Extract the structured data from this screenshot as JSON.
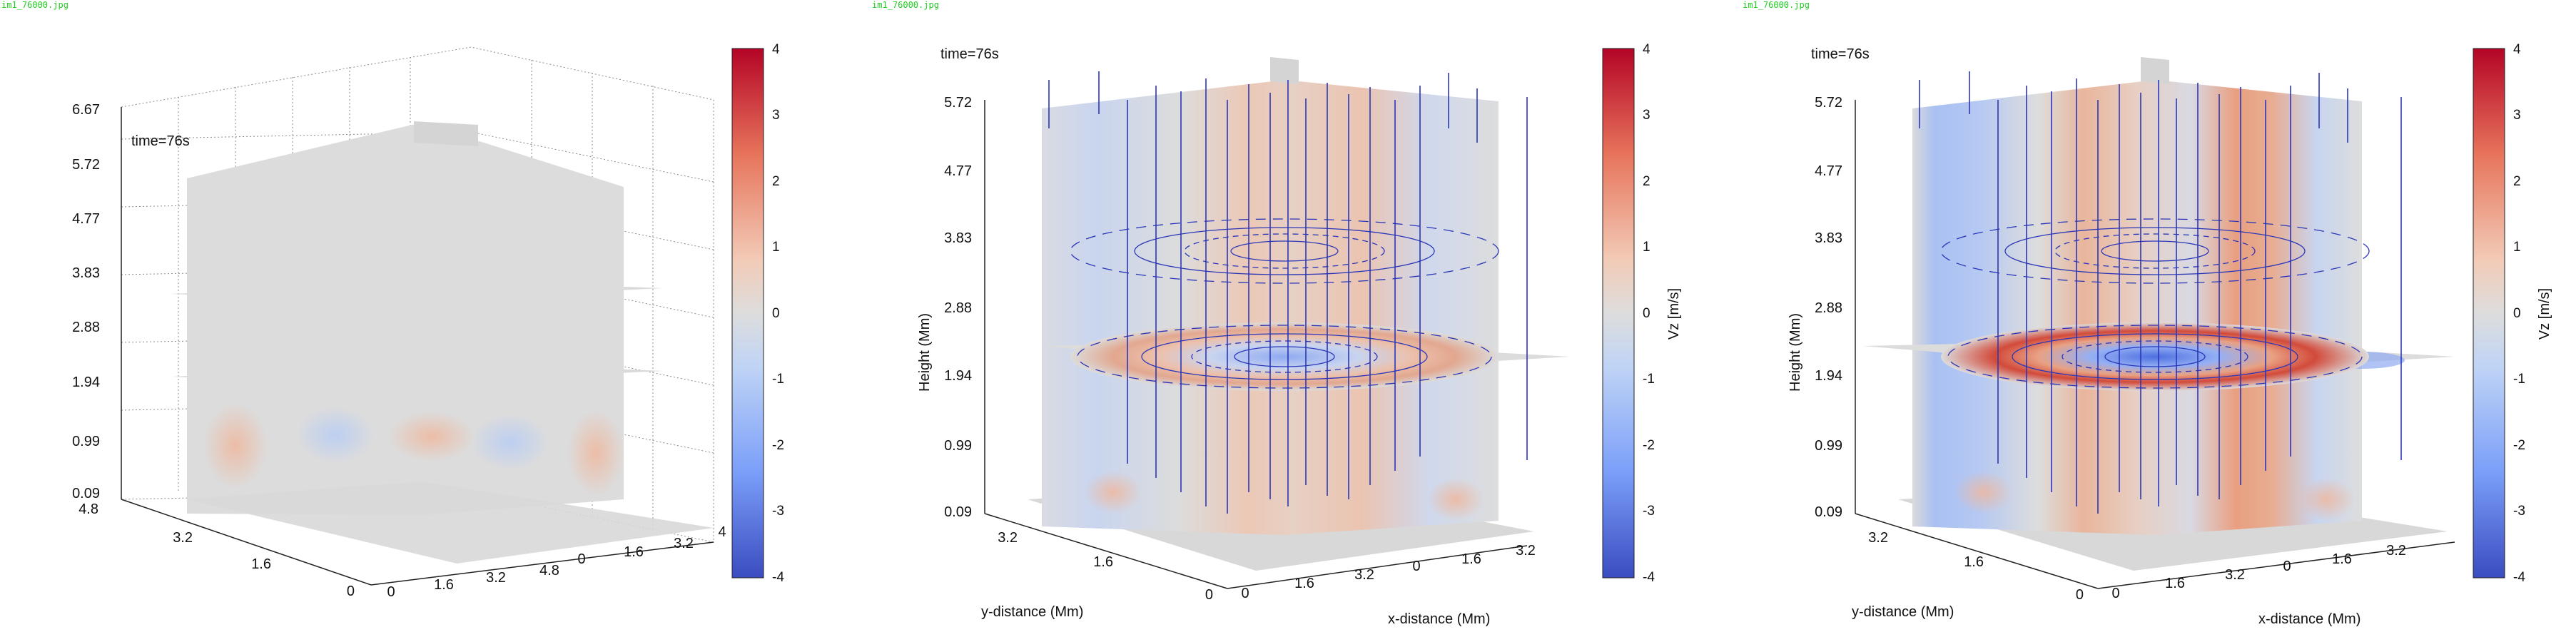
{
  "panels": [
    {
      "filename": "im1_76000.jpg",
      "time_label": "time=76s",
      "chart_data": {
        "type": "heatmap",
        "title": "",
        "z_ticks": [
          "0.09",
          "0.99",
          "1.94",
          "2.88",
          "3.83",
          "4.77",
          "5.72",
          "6.67"
        ],
        "y_ticks": [
          "0",
          "1.6",
          "3.2",
          "4.8"
        ],
        "x_ticks": [
          "0",
          "1.6",
          "3.2",
          "4.8",
          "0",
          "1.6",
          "3.2",
          "4"
        ],
        "xlabel": "",
        "ylabel": "",
        "zlabel": "",
        "colorbar": {
          "min": -4,
          "max": 4,
          "ticks": [
            "4",
            "3",
            "2",
            "1",
            "0",
            "-1",
            "-2",
            "-3",
            "-4"
          ],
          "label": ""
        },
        "grid": true
      }
    },
    {
      "filename": "im1_76000.jpg",
      "time_label": "time=76s",
      "chart_data": {
        "type": "heatmap",
        "title": "",
        "z_ticks": [
          "0.09",
          "0.99",
          "1.94",
          "2.88",
          "3.83",
          "4.77",
          "5.72"
        ],
        "y_ticks": [
          "0",
          "1.6",
          "3.2"
        ],
        "x_ticks": [
          "0",
          "1.6",
          "3.2",
          "0",
          "1.6",
          "3.2"
        ],
        "xlabel": "x-distance (Mm)",
        "ylabel": "y-distance (Mm)",
        "zlabel": "Height (Mm)",
        "colorbar": {
          "min": -4,
          "max": 4,
          "ticks": [
            "4",
            "3",
            "2",
            "1",
            "0",
            "-1",
            "-2",
            "-3",
            "-4"
          ],
          "label": "Vz [m/s]"
        },
        "grid": false
      }
    },
    {
      "filename": "im1_76000.jpg",
      "time_label": "time=76s",
      "chart_data": {
        "type": "heatmap",
        "title": "",
        "z_ticks": [
          "0.09",
          "0.99",
          "1.94",
          "2.88",
          "3.83",
          "4.77",
          "5.72"
        ],
        "y_ticks": [
          "0",
          "1.6",
          "3.2"
        ],
        "x_ticks": [
          "0",
          "1.6",
          "3.2",
          "0",
          "1.6",
          "3.2"
        ],
        "xlabel": "x-distance (Mm)",
        "ylabel": "y-distance (Mm)",
        "zlabel": "Height (Mm)",
        "colorbar": {
          "min": -4,
          "max": 4,
          "ticks": [
            "4",
            "3",
            "2",
            "1",
            "0",
            "-1",
            "-2",
            "-3",
            "-4"
          ],
          "label": "Vz [m/s]"
        },
        "grid": false
      }
    }
  ],
  "colormap": {
    "low": "#3a4cc0",
    "mid": "#dddddd",
    "high": "#b40426"
  }
}
